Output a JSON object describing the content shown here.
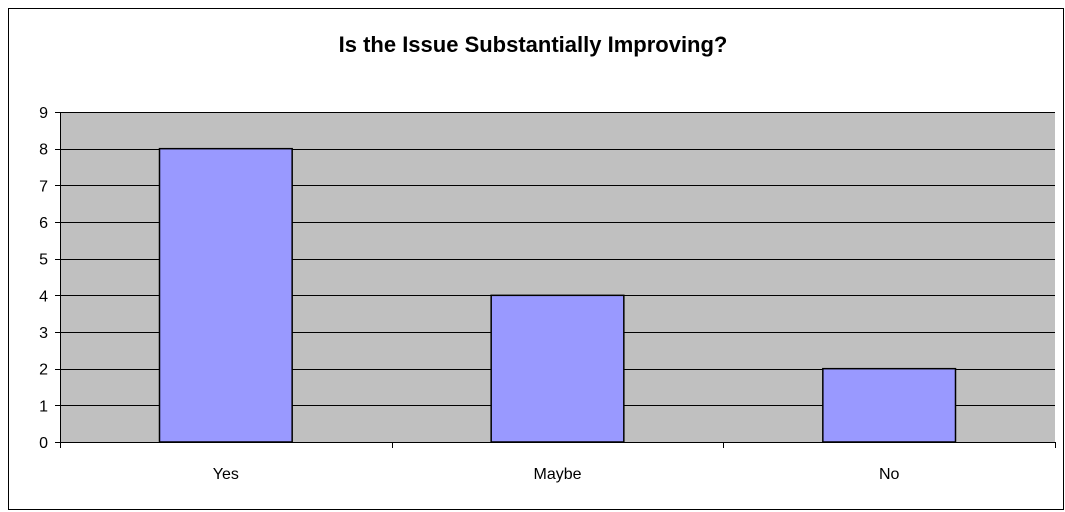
{
  "chart_data": {
    "type": "bar",
    "title": "Is the Issue Substantially Improving?",
    "xlabel": "",
    "ylabel": "",
    "categories": [
      "Yes",
      "Maybe",
      "No"
    ],
    "values": [
      8,
      4,
      2
    ],
    "ylim": [
      0,
      9
    ],
    "yticks": [
      "0",
      "1",
      "2",
      "3",
      "4",
      "5",
      "6",
      "7",
      "8",
      "9"
    ],
    "grid": true,
    "legend": "none",
    "colors": {
      "bar_fill": "#9999ff",
      "plot_background": "#c0c0c0",
      "gridline": "#000000",
      "bar_stroke": "#000000"
    }
  }
}
